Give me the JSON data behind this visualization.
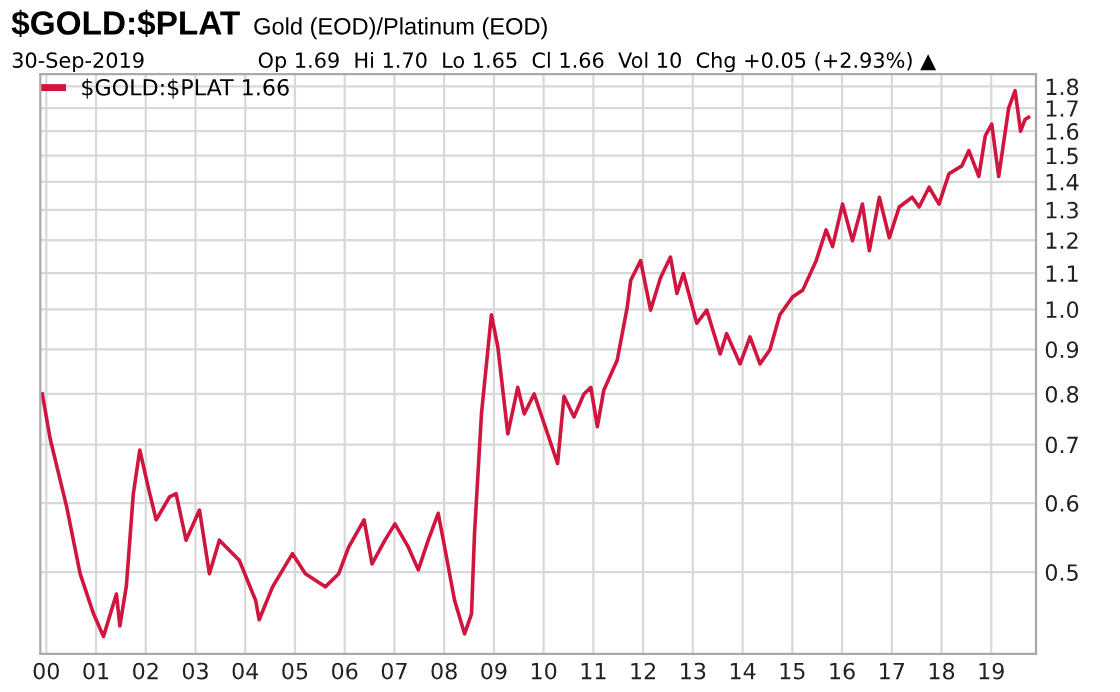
{
  "chart_data": {
    "type": "line",
    "title": "$GOLD:$PLAT",
    "subtitle": "Gold (EOD)/Platinum (EOD)",
    "annotations": [
      "30-Sep-2019",
      "Op 1.69  Hi 1.70  Lo 1.65  Cl 1.66  Vol 10  Chg +0.05 (+2.93%) ▲"
    ],
    "log": "y",
    "grid": true,
    "legend": "top left",
    "marker": "none",
    "line_style": "solid",
    "xlim": [
      1999.88,
      2019.9
    ],
    "ylim": [
      0.403,
      1.86
    ],
    "xticks": [
      {
        "value": 2000,
        "label": "00"
      },
      {
        "value": 2001,
        "label": "01"
      },
      {
        "value": 2002,
        "label": "02"
      },
      {
        "value": 2003,
        "label": "03"
      },
      {
        "value": 2004,
        "label": "04"
      },
      {
        "value": 2005,
        "label": "05"
      },
      {
        "value": 2006,
        "label": "06"
      },
      {
        "value": 2007,
        "label": "07"
      },
      {
        "value": 2008,
        "label": "08"
      },
      {
        "value": 2009,
        "label": "09"
      },
      {
        "value": 2010,
        "label": "10"
      },
      {
        "value": 2011,
        "label": "11"
      },
      {
        "value": 2012,
        "label": "12"
      },
      {
        "value": 2013,
        "label": "13"
      },
      {
        "value": 2014,
        "label": "14"
      },
      {
        "value": 2015,
        "label": "15"
      },
      {
        "value": 2016,
        "label": "16"
      },
      {
        "value": 2017,
        "label": "17"
      },
      {
        "value": 2018,
        "label": "18"
      },
      {
        "value": 2019,
        "label": "19"
      }
    ],
    "yticks": [
      0.5,
      0.6,
      0.7,
      0.8,
      0.9,
      {
        "value": 1,
        "label": "1.0"
      },
      1.1,
      1.2,
      1.3,
      1.4,
      1.5,
      1.6,
      1.7,
      1.8
    ],
    "series": [
      {
        "name": "$GOLD:$PLAT 1.66",
        "color": "#d0163f",
        "x": [
          1999.92,
          2000.08,
          2000.41,
          2000.68,
          2000.95,
          2001.15,
          2001.41,
          2001.48,
          2001.61,
          2001.75,
          2001.88,
          2002.08,
          2002.21,
          2002.48,
          2002.61,
          2002.81,
          2003.08,
          2003.28,
          2003.48,
          2003.88,
          2004.21,
          2004.28,
          2004.55,
          2004.95,
          2005.21,
          2005.61,
          2005.88,
          2006.08,
          2006.39,
          2006.55,
          2006.81,
          2007.01,
          2007.28,
          2007.48,
          2007.68,
          2007.88,
          2008.01,
          2008.21,
          2008.41,
          2008.55,
          2008.61,
          2008.75,
          2008.95,
          2009.08,
          2009.28,
          2009.48,
          2009.61,
          2009.81,
          2010.08,
          2010.28,
          2010.41,
          2010.61,
          2010.81,
          2010.95,
          2011.08,
          2011.21,
          2011.48,
          2011.68,
          2011.75,
          2011.95,
          2012.15,
          2012.35,
          2012.55,
          2012.68,
          2012.81,
          2013.08,
          2013.28,
          2013.55,
          2013.68,
          2013.95,
          2014.15,
          2014.35,
          2014.55,
          2014.75,
          2015.01,
          2015.21,
          2015.48,
          2015.68,
          2015.81,
          2016.01,
          2016.21,
          2016.41,
          2016.55,
          2016.75,
          2016.95,
          2017.15,
          2017.41,
          2017.55,
          2017.75,
          2017.95,
          2018.15,
          2018.41,
          2018.55,
          2018.75,
          2018.88,
          2019.01,
          2019.15,
          2019.35,
          2019.48,
          2019.59,
          2019.68,
          2019.75
        ],
        "values": [
          0.8,
          0.71,
          0.594,
          0.498,
          0.448,
          0.422,
          0.472,
          0.434,
          0.482,
          0.615,
          0.69,
          0.615,
          0.574,
          0.61,
          0.615,
          0.544,
          0.589,
          0.498,
          0.544,
          0.516,
          0.464,
          0.441,
          0.481,
          0.525,
          0.498,
          0.481,
          0.498,
          0.534,
          0.574,
          0.511,
          0.544,
          0.568,
          0.534,
          0.503,
          0.544,
          0.584,
          0.534,
          0.464,
          0.425,
          0.448,
          0.553,
          0.759,
          0.986,
          0.905,
          0.72,
          0.814,
          0.759,
          0.8,
          0.72,
          0.666,
          0.795,
          0.753,
          0.8,
          0.814,
          0.734,
          0.808,
          0.875,
          1.005,
          1.079,
          1.137,
          0.998,
          1.087,
          1.148,
          1.043,
          1.099,
          0.964,
          0.998,
          0.889,
          0.938,
          0.866,
          0.93,
          0.866,
          0.899,
          0.986,
          1.034,
          1.052,
          1.137,
          1.233,
          1.18,
          1.32,
          1.198,
          1.32,
          1.167,
          1.344,
          1.208,
          1.31,
          1.344,
          1.31,
          1.38,
          1.32,
          1.43,
          1.46,
          1.52,
          1.42,
          1.58,
          1.63,
          1.42,
          1.7,
          1.78,
          1.6,
          1.65,
          1.66
        ]
      }
    ]
  }
}
